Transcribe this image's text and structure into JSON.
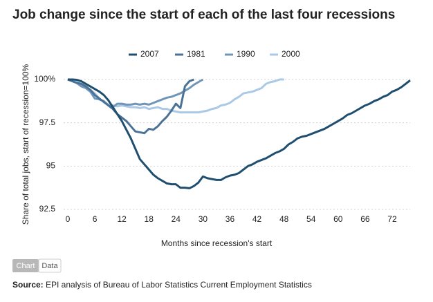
{
  "chart_data": {
    "type": "line",
    "title": "Job change since the start of each of the last four recessions",
    "x_label": "Months since recession's start",
    "y_label": "Share of total jobs, start of recession=100%",
    "x": [
      0,
      1,
      2,
      3,
      4,
      5,
      6,
      7,
      8,
      9,
      10,
      11,
      12,
      13,
      14,
      15,
      16,
      17,
      18,
      19,
      20,
      21,
      22,
      23,
      24,
      25,
      26,
      27,
      28,
      29,
      30,
      31,
      32,
      33,
      34,
      35,
      36,
      37,
      38,
      39,
      40,
      41,
      42,
      43,
      44,
      45,
      46,
      47,
      48,
      49,
      50,
      51,
      52,
      53,
      54,
      55,
      56,
      57,
      58,
      59,
      60,
      61,
      62,
      63,
      64,
      65,
      66,
      67,
      68,
      69,
      70,
      71,
      72,
      73,
      74,
      75,
      76
    ],
    "xlim": [
      0,
      76
    ],
    "xticks": [
      0,
      6,
      12,
      18,
      24,
      30,
      36,
      42,
      48,
      54,
      60,
      66,
      72
    ],
    "ylim": [
      92.5,
      100
    ],
    "yticks": [
      92.5,
      95,
      97.5,
      {
        "value": 100,
        "label": "100%"
      }
    ],
    "grid": true,
    "series": [
      {
        "name": "2007",
        "color": "#1f4e6e",
        "values": [
          100,
          100,
          99.98,
          99.9,
          99.75,
          99.6,
          99.45,
          99.3,
          99.1,
          98.8,
          98.4,
          98.0,
          97.6,
          97.1,
          96.6,
          96.0,
          95.4,
          95.1,
          94.8,
          94.5,
          94.3,
          94.15,
          94.0,
          93.95,
          93.95,
          93.75,
          93.75,
          93.72,
          93.85,
          94.05,
          94.4,
          94.3,
          94.25,
          94.2,
          94.2,
          94.35,
          94.45,
          94.5,
          94.6,
          94.8,
          95.0,
          95.1,
          95.25,
          95.35,
          95.45,
          95.6,
          95.75,
          95.85,
          96.0,
          96.25,
          96.4,
          96.6,
          96.7,
          96.75,
          96.85,
          96.95,
          97.05,
          97.15,
          97.3,
          97.45,
          97.6,
          97.75,
          97.95,
          98.05,
          98.2,
          98.35,
          98.5,
          98.6,
          98.75,
          98.85,
          99.0,
          99.1,
          99.3,
          99.4,
          99.55,
          99.75,
          99.95
        ]
      },
      {
        "name": "1981",
        "color": "#4a7297",
        "values": [
          100,
          99.9,
          99.8,
          99.75,
          99.6,
          99.4,
          99.1,
          98.9,
          98.7,
          98.5,
          98.3,
          98.0,
          97.8,
          97.6,
          97.3,
          97.0,
          96.95,
          96.9,
          97.15,
          97.1,
          97.3,
          97.6,
          97.85,
          98.2,
          98.6,
          98.35,
          99.6,
          99.9,
          100,
          null,
          null,
          null,
          null,
          null,
          null,
          null,
          null,
          null,
          null,
          null,
          null,
          null,
          null,
          null,
          null,
          null,
          null,
          null,
          null,
          null,
          null,
          null,
          null,
          null,
          null,
          null,
          null,
          null,
          null,
          null,
          null,
          null,
          null,
          null,
          null,
          null,
          null,
          null,
          null,
          null,
          null,
          null,
          null,
          null,
          null,
          null,
          null
        ]
      },
      {
        "name": "1990",
        "color": "#7095b7",
        "values": [
          100,
          99.9,
          99.8,
          99.6,
          99.5,
          99.3,
          98.9,
          98.85,
          98.75,
          98.5,
          98.4,
          98.6,
          98.6,
          98.55,
          98.55,
          98.6,
          98.55,
          98.6,
          98.55,
          98.65,
          98.75,
          98.85,
          98.95,
          99.0,
          99.1,
          99.2,
          99.35,
          99.5,
          99.7,
          99.85,
          100,
          null,
          null,
          null,
          null,
          null,
          null,
          null,
          null,
          null,
          null,
          null,
          null,
          null,
          null,
          null,
          null,
          null,
          null,
          null,
          null,
          null,
          null,
          null,
          null,
          null,
          null,
          null,
          null,
          null,
          null,
          null,
          null,
          null,
          null,
          null,
          null,
          null,
          null,
          null,
          null,
          null,
          null,
          null,
          null,
          null,
          null
        ]
      },
      {
        "name": "2000",
        "color": "#a9c9e6",
        "values": [
          100,
          99.9,
          99.85,
          99.75,
          99.6,
          99.4,
          99.2,
          98.9,
          98.7,
          98.55,
          98.5,
          98.45,
          98.5,
          98.45,
          98.4,
          98.4,
          98.35,
          98.4,
          98.3,
          98.35,
          98.4,
          98.3,
          98.3,
          98.2,
          98.15,
          98.1,
          98.1,
          98.1,
          98.1,
          98.1,
          98.15,
          98.2,
          98.3,
          98.35,
          98.5,
          98.55,
          98.65,
          98.85,
          99.0,
          99.2,
          99.25,
          99.3,
          99.4,
          99.5,
          99.75,
          99.85,
          99.9,
          100,
          100,
          null,
          null,
          null,
          null,
          null,
          null,
          null,
          null,
          null,
          null,
          null,
          null,
          null,
          null,
          null,
          null,
          null,
          null,
          null,
          null,
          null,
          null,
          null,
          null,
          null,
          null,
          null,
          null
        ]
      }
    ]
  },
  "toggle": {
    "chart": "Chart",
    "data": "Data"
  },
  "source": {
    "label": "Source:",
    "text": "EPI analysis of Bureau of Labor Statistics Current Employment Statistics"
  }
}
